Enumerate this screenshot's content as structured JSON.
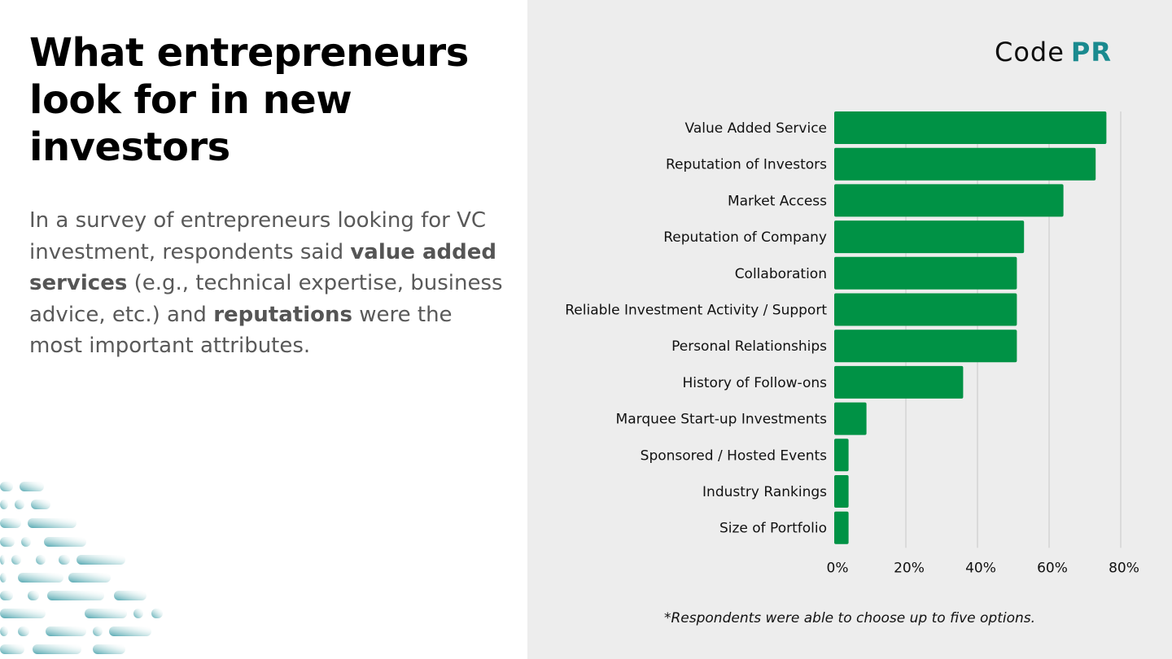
{
  "title": "What entrepreneurs look for in new investors",
  "body": {
    "part1": "In a survey of entrepreneurs looking for VC investment, respondents said ",
    "bold1": "value added services",
    "part2": " (e.g., technical expertise, business advice, etc.) and ",
    "bold2": "reputations",
    "part3": " were the most important attributes."
  },
  "logo": {
    "text1": "Code",
    "text2": "PR"
  },
  "footnote": "*Respondents were able to choose up to five options.",
  "colors": {
    "bar": "#009245",
    "panel": "#ededed",
    "accent": "#1a8a8f",
    "grid": "#c8c8c8"
  },
  "chart_data": {
    "type": "bar",
    "orientation": "horizontal",
    "categories": [
      "Value Added Service",
      "Reputation of Investors",
      "Market Access",
      "Reputation of Company",
      "Collaboration",
      "Reliable Investment Activity / Support",
      "Personal Relationships",
      "History of Follow-ons",
      "Marquee Start-up Investments",
      "Sponsored / Hosted Events",
      "Industry Rankings",
      "Size of Portfolio"
    ],
    "values": [
      76,
      73,
      64,
      53,
      51,
      51,
      51,
      36,
      9,
      4,
      4,
      4
    ],
    "xlim": [
      0,
      80
    ],
    "x_ticks": [
      "0%",
      "20%",
      "40%",
      "60%",
      "80%"
    ],
    "grid": "vertical"
  }
}
